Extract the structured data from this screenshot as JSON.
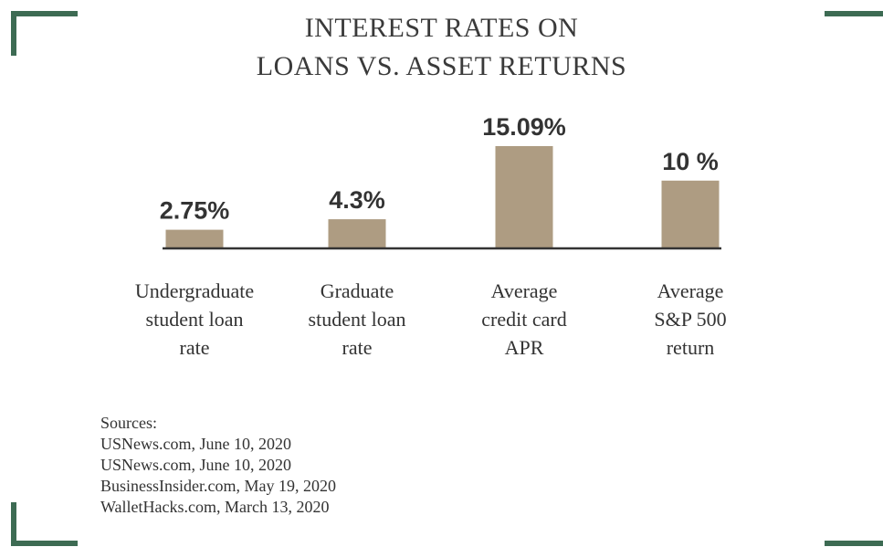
{
  "colors": {
    "accent": "#3d6b53",
    "bar": "#ae9c82",
    "baseline": "#333333"
  },
  "chart_data": {
    "type": "bar",
    "title": "INTEREST RATES ON LOANS VS. ASSET RETURNS",
    "title_lines": [
      "INTEREST RATES ON",
      "LOANS VS. ASSET RETURNS"
    ],
    "categories": [
      "Undergraduate student loan rate",
      "Graduate student loan rate",
      "Average credit card APR",
      "Average S&P 500 return"
    ],
    "category_lines": [
      [
        "Undergraduate",
        "student loan",
        "rate"
      ],
      [
        "Graduate",
        "student loan",
        "rate"
      ],
      [
        "Average",
        "credit card",
        "APR"
      ],
      [
        "Average",
        "S&P 500",
        "return"
      ]
    ],
    "values": [
      2.75,
      4.3,
      15.09,
      10
    ],
    "value_labels": [
      "2.75%",
      "4.3%",
      "15.09%",
      "10 %"
    ],
    "unit": "%",
    "xlabel": "",
    "ylabel": "",
    "ylim": [
      0,
      15.09
    ],
    "grid": false,
    "legend": "none"
  },
  "sources": {
    "heading": "Sources:",
    "items": [
      "USNews.com, June 10, 2020",
      "USNews.com, June 10, 2020",
      "BusinessInsider.com, May 19, 2020",
      "WalletHacks.com, March 13, 2020"
    ]
  }
}
